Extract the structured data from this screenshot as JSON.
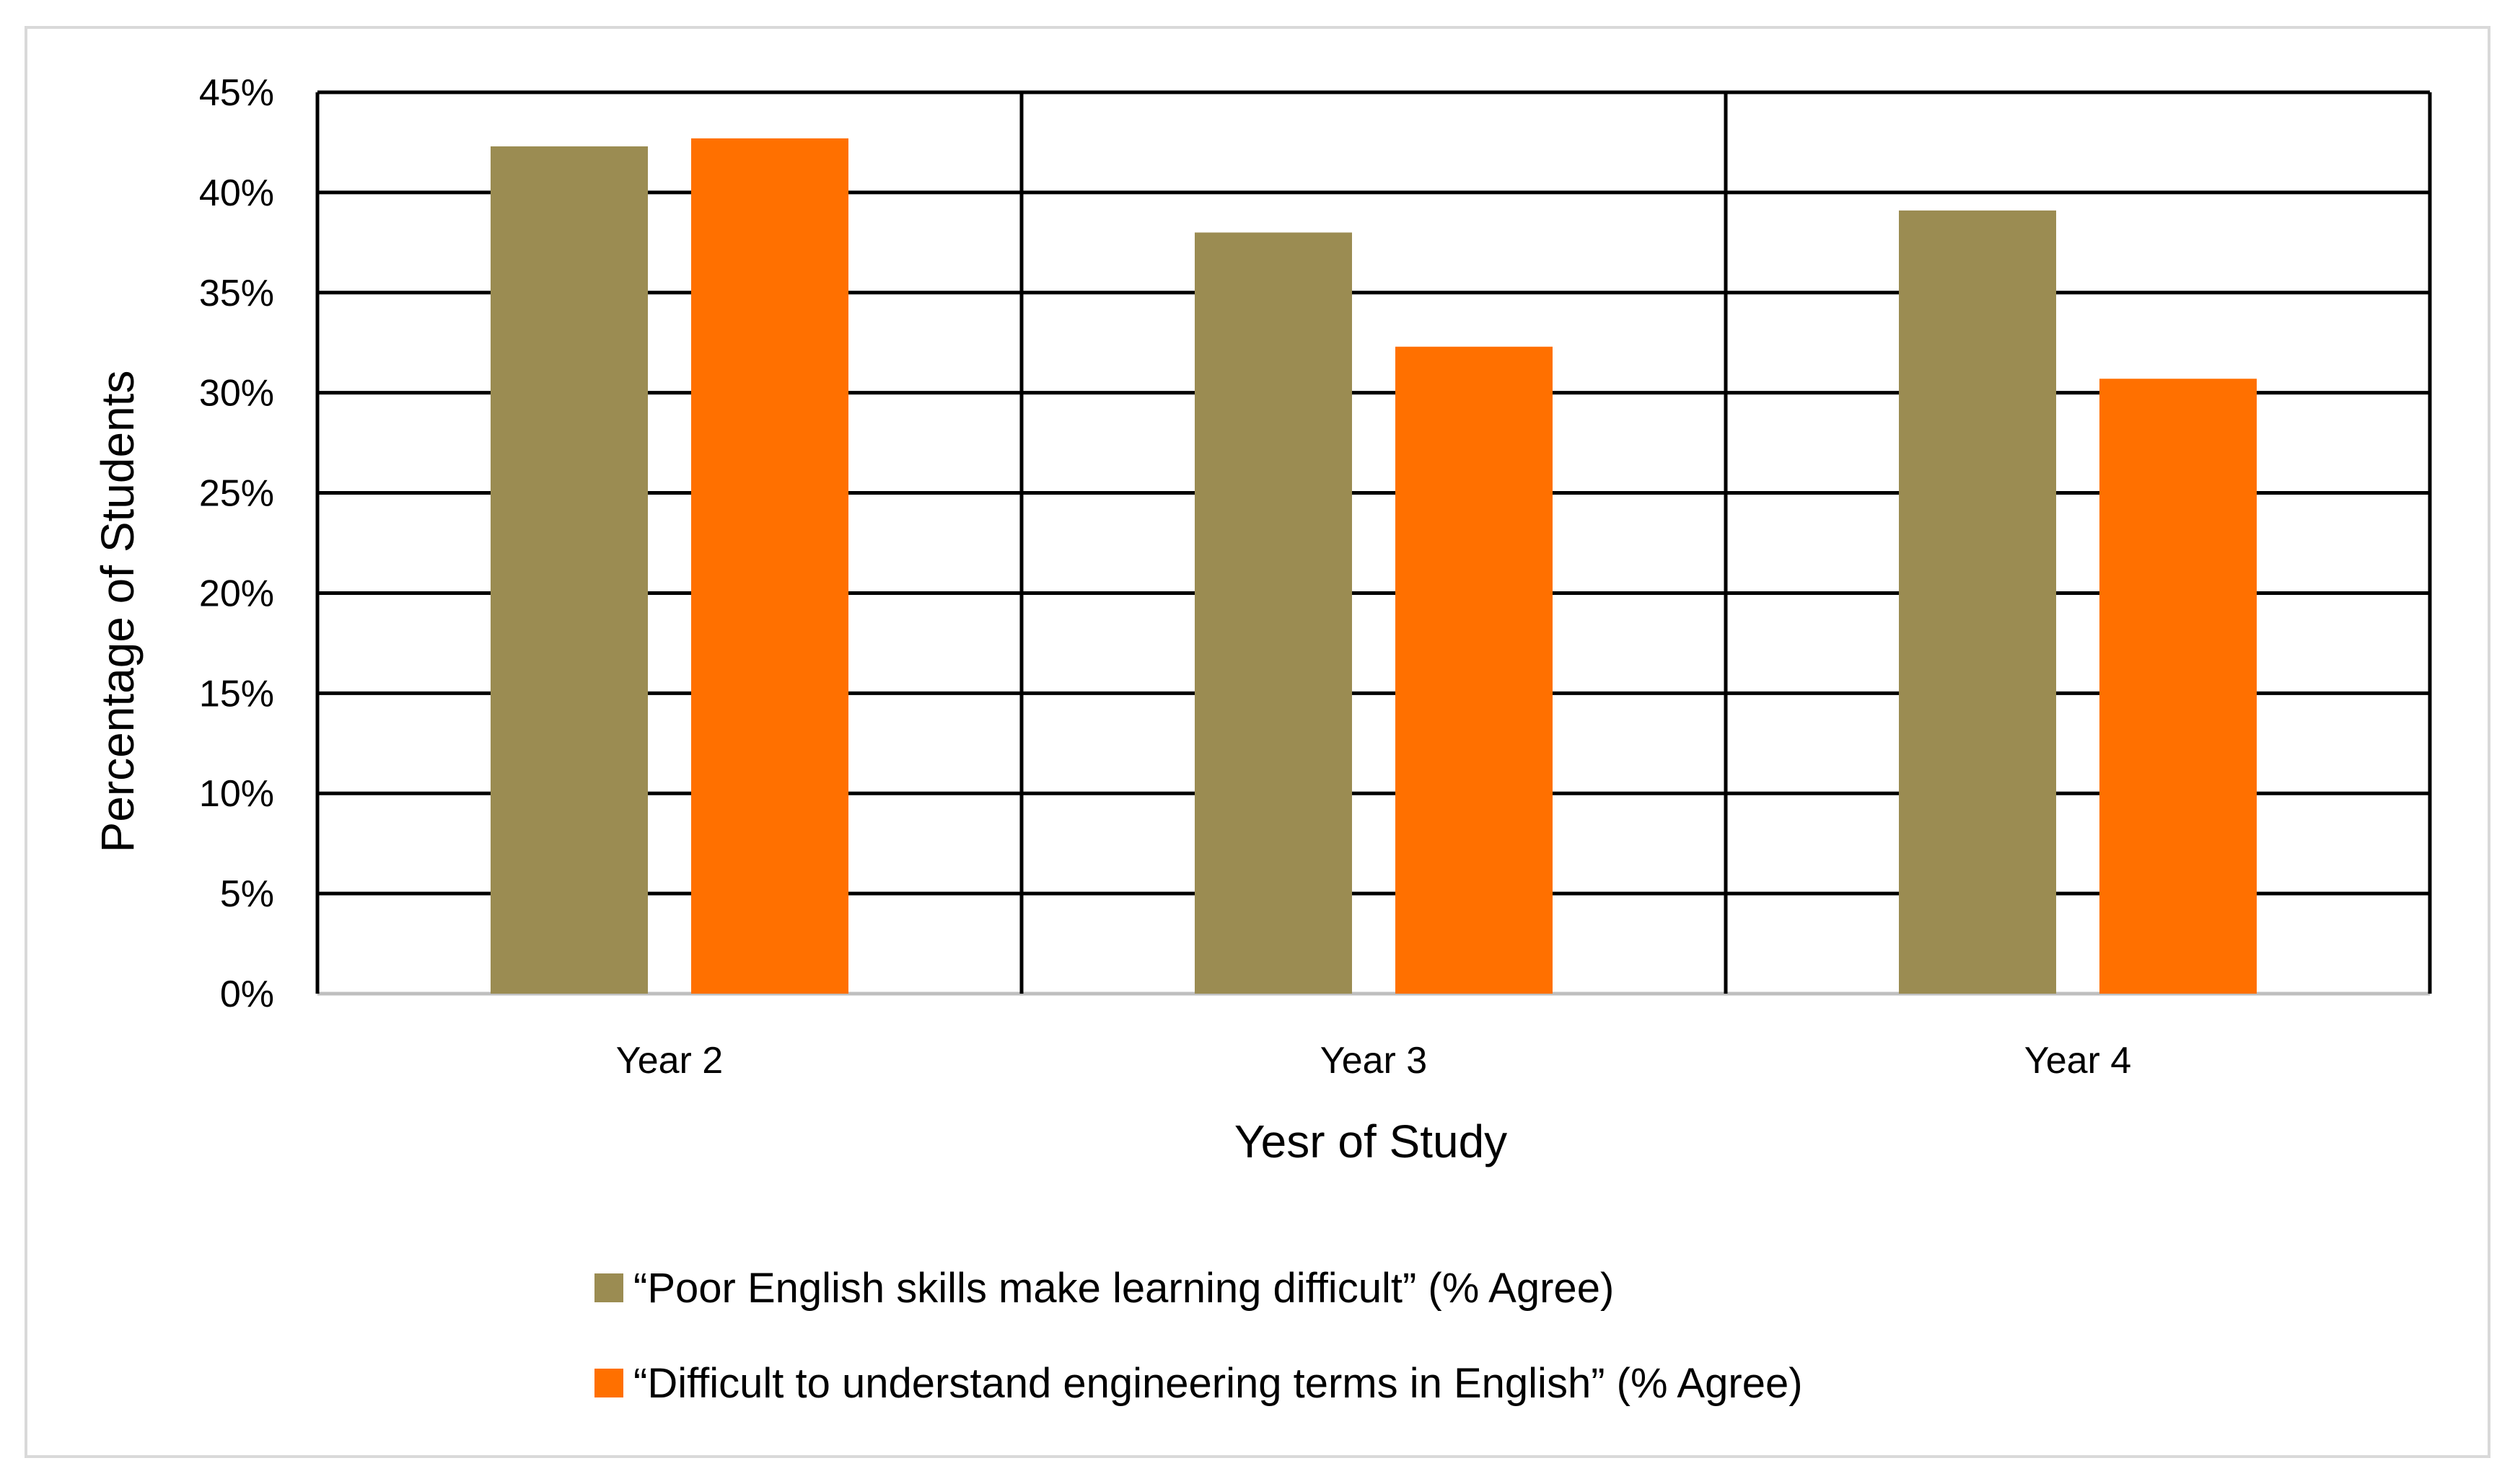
{
  "chart_data": {
    "type": "bar",
    "title": "",
    "xlabel": "Yesr of Study",
    "ylabel": "Percentage of Students",
    "categories": [
      "Year 2",
      "Year 3",
      "Year 4"
    ],
    "series": [
      {
        "name": "“Poor English skills make learning difficult” (% Agree)",
        "color": "#9b8c52",
        "values": [
          42.3,
          38.0,
          39.1
        ]
      },
      {
        "name": "“Difficult to understand engineering terms in English” (% Agree)",
        "color": "#ff7000",
        "values": [
          42.7,
          32.3,
          30.7
        ]
      }
    ],
    "ylim": [
      0,
      45
    ],
    "yticks": [
      0,
      5,
      10,
      15,
      20,
      25,
      30,
      35,
      40,
      45
    ],
    "ytick_labels": [
      "0%",
      "5%",
      "10%",
      "15%",
      "20%",
      "25%",
      "30%",
      "35%",
      "40%",
      "45%"
    ],
    "grid": true,
    "legend_position": "bottom"
  }
}
